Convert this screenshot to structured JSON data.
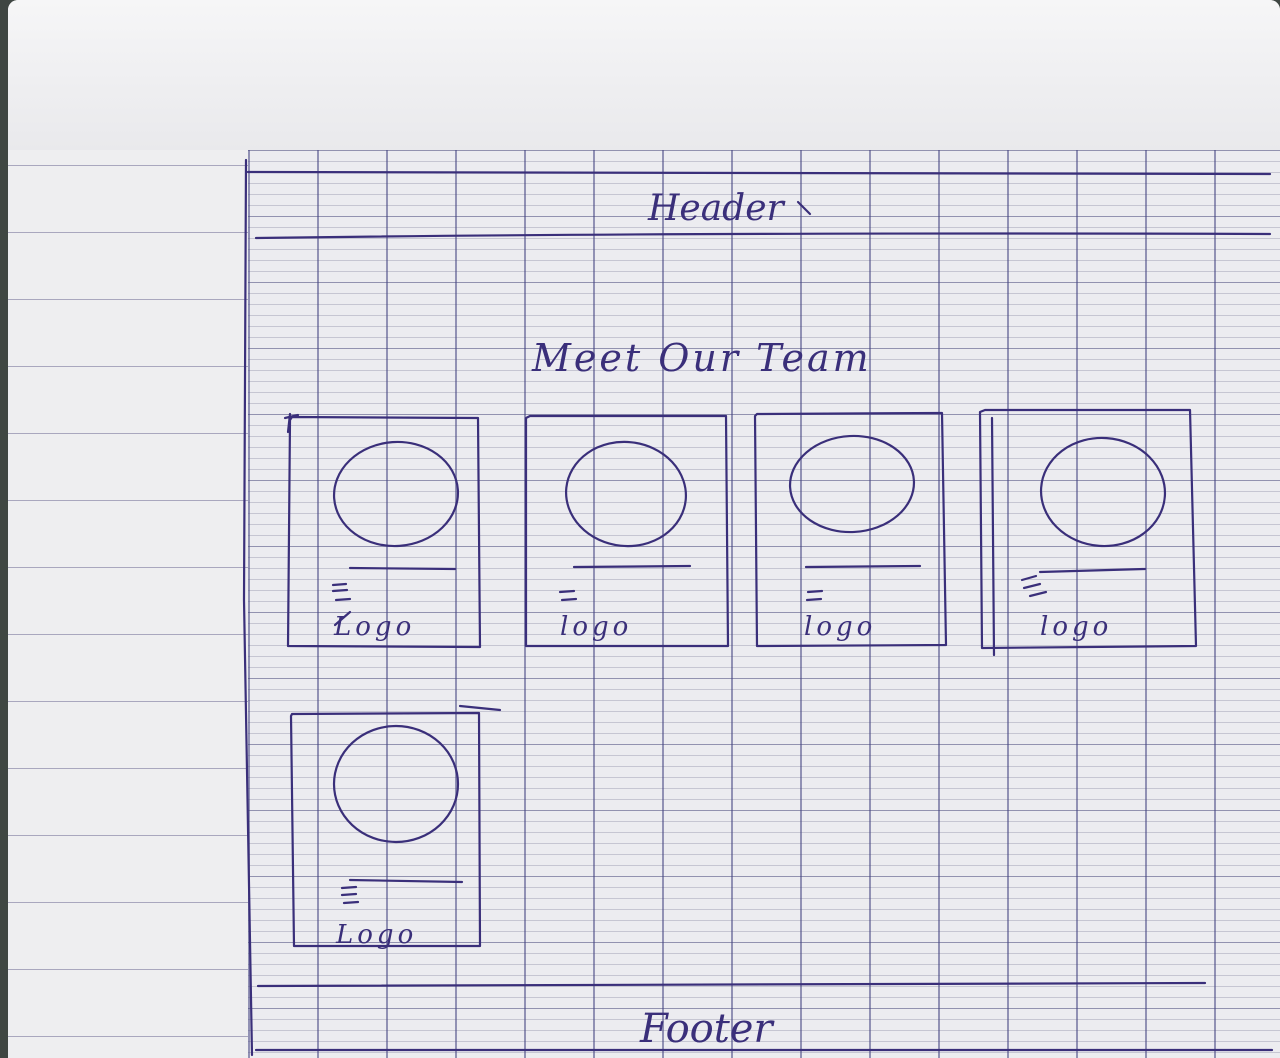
{
  "header": {
    "label": "Header"
  },
  "section": {
    "title": "Meet Our Team"
  },
  "cards": [
    {
      "label": "Logo"
    },
    {
      "label": "logo"
    },
    {
      "label": "logo"
    },
    {
      "label": "logo"
    },
    {
      "label": "Logo"
    }
  ],
  "footer": {
    "label": "Footer"
  },
  "colors": {
    "ink": "#3a2f7a",
    "paper": "#eeeef0",
    "grid": "#46468a",
    "background": "#3f4642"
  }
}
